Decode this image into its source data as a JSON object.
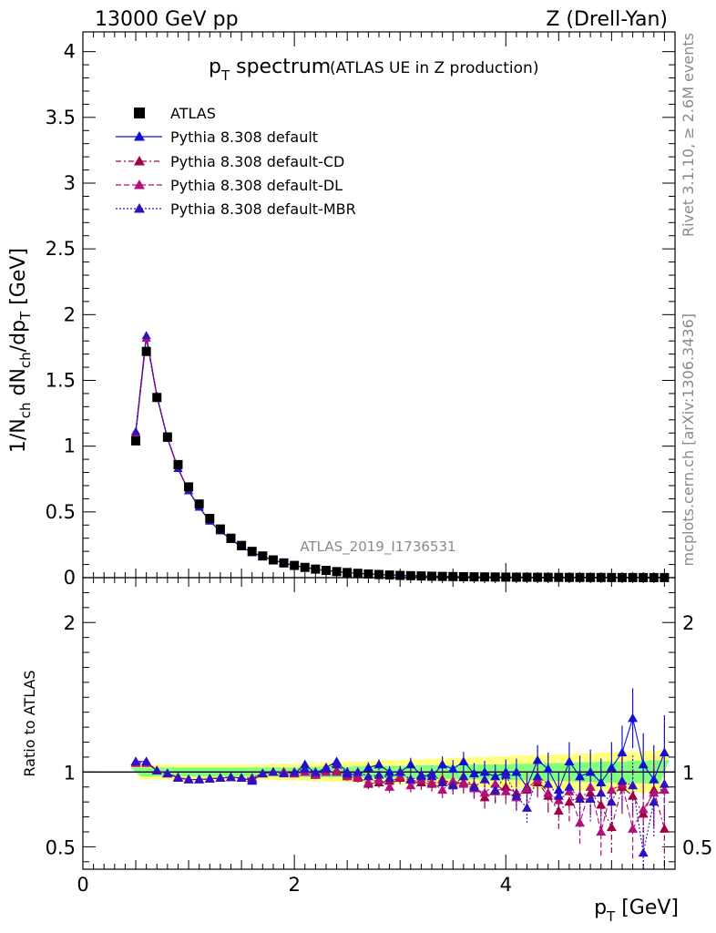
{
  "header": {
    "left": "13000 GeV pp",
    "right": "Z (Drell-Yan)"
  },
  "side_labels": {
    "rivet": "Rivet 3.1.10, ≥ 2.6M events",
    "mcplots": "mcplots.cern.ch [arXiv:1306.3436]"
  },
  "colors": {
    "data": "#000000",
    "default": "#1010d0",
    "cd": "#a00044",
    "dl": "#b0107a",
    "mbr": "#3010c0",
    "band_yellow": "#ffff80",
    "band_green": "#80ff80"
  },
  "chart_data": [
    {
      "type": "line",
      "title": "p_T spectrum",
      "title_main": "p",
      "title_sub": "T",
      "title_rest": " spectrum",
      "subtitle": "(ATLAS UE in Z production)",
      "analysis_label": "ATLAS_2019_I1736531",
      "xlabel": "p_T [GeV]",
      "ylabel": "1/N_ch dN_ch/dp_T [GeV]",
      "xlim": [
        0,
        5.6
      ],
      "ylim": [
        0,
        4.15
      ],
      "y_ticks": [
        "0",
        "0.5",
        "1",
        "1.5",
        "2",
        "2.5",
        "3",
        "3.5",
        "4"
      ],
      "legend": [
        "ATLAS",
        "Pythia 8.308 default",
        "Pythia 8.308 default-CD",
        "Pythia 8.308 default-DL",
        "Pythia 8.308 default-MBR"
      ],
      "x": [
        0.5,
        0.6,
        0.7,
        0.8,
        0.9,
        1.0,
        1.1,
        1.2,
        1.3,
        1.4,
        1.5,
        1.6,
        1.7,
        1.8,
        1.9,
        2.0,
        2.1,
        2.2,
        2.3,
        2.4,
        2.5,
        2.6,
        2.7,
        2.8,
        2.9,
        3.0,
        3.1,
        3.2,
        3.3,
        3.4,
        3.5,
        3.6,
        3.7,
        3.8,
        3.9,
        4.0,
        4.1,
        4.2,
        4.3,
        4.4,
        4.5,
        4.6,
        4.7,
        4.8,
        4.9,
        5.0,
        5.1,
        5.2,
        5.3,
        5.4,
        5.5
      ],
      "series": [
        {
          "name": "ATLAS",
          "values": [
            1.04,
            1.72,
            1.37,
            1.07,
            0.86,
            0.69,
            0.56,
            0.45,
            0.37,
            0.3,
            0.245,
            0.2,
            0.165,
            0.135,
            0.112,
            0.093,
            0.078,
            0.065,
            0.055,
            0.046,
            0.039,
            0.033,
            0.028,
            0.024,
            0.02,
            0.017,
            0.015,
            0.013,
            0.011,
            0.0095,
            0.0082,
            0.0071,
            0.0062,
            0.0054,
            0.0047,
            0.0041,
            0.0036,
            0.0031,
            0.0027,
            0.0024,
            0.0021,
            0.0018,
            0.0016,
            0.0014,
            0.0012,
            0.0011,
            0.00095,
            0.00083,
            0.00073,
            0.00064,
            0.00056
          ]
        },
        {
          "name": "Pythia 8.308 default",
          "values": [
            1.11,
            1.84,
            1.38,
            1.06,
            0.83,
            0.66,
            0.535,
            0.43,
            0.355,
            0.29,
            0.235,
            0.19,
            0.163,
            0.134,
            0.111,
            0.092,
            0.078,
            0.064,
            0.054,
            0.047,
            0.039,
            0.033,
            0.028,
            0.024,
            0.02,
            0.017,
            0.015,
            0.013,
            0.011,
            0.0093,
            0.0081,
            0.007,
            0.0061,
            0.0053,
            0.0046,
            0.004,
            0.0035,
            0.003,
            0.0026,
            0.0023,
            0.002,
            0.0017,
            0.0015,
            0.0013,
            0.0011,
            0.001,
            0.0009,
            0.0008,
            0.0007,
            0.0006,
            0.0005
          ]
        },
        {
          "name": "Pythia 8.308 default-CD",
          "values": [
            1.1,
            1.82,
            1.38,
            1.06,
            0.83,
            0.66,
            0.535,
            0.43,
            0.355,
            0.29,
            0.235,
            0.19,
            0.163,
            0.134,
            0.111,
            0.092,
            0.077,
            0.064,
            0.054,
            0.046,
            0.039,
            0.033,
            0.027,
            0.023,
            0.019,
            0.016,
            0.014,
            0.012,
            0.01,
            0.0088,
            0.0076,
            0.0066,
            0.0057,
            0.0049,
            0.0043,
            0.0037,
            0.0032,
            0.0028,
            0.0024,
            0.0021,
            0.0018,
            0.0016,
            0.0014,
            0.0012,
            0.001,
            0.0009,
            0.0008,
            0.0007,
            0.0006,
            0.0005,
            0.0004
          ]
        },
        {
          "name": "Pythia 8.308 default-DL",
          "values": [
            1.1,
            1.82,
            1.38,
            1.06,
            0.83,
            0.66,
            0.535,
            0.43,
            0.355,
            0.29,
            0.235,
            0.19,
            0.163,
            0.134,
            0.111,
            0.092,
            0.077,
            0.064,
            0.054,
            0.046,
            0.039,
            0.033,
            0.027,
            0.023,
            0.019,
            0.016,
            0.014,
            0.012,
            0.01,
            0.0088,
            0.0076,
            0.0066,
            0.0057,
            0.0049,
            0.0043,
            0.0037,
            0.0032,
            0.0028,
            0.0024,
            0.0021,
            0.0018,
            0.0016,
            0.0014,
            0.0012,
            0.001,
            0.0009,
            0.0008,
            0.0007,
            0.0006,
            0.0005,
            0.0004
          ]
        },
        {
          "name": "Pythia 8.308 default-MBR",
          "values": [
            1.11,
            1.84,
            1.38,
            1.06,
            0.83,
            0.66,
            0.535,
            0.43,
            0.355,
            0.29,
            0.235,
            0.19,
            0.163,
            0.134,
            0.111,
            0.092,
            0.078,
            0.064,
            0.054,
            0.047,
            0.039,
            0.033,
            0.028,
            0.024,
            0.02,
            0.017,
            0.015,
            0.013,
            0.011,
            0.0093,
            0.0081,
            0.007,
            0.0061,
            0.0053,
            0.0046,
            0.004,
            0.0035,
            0.003,
            0.0026,
            0.0023,
            0.002,
            0.0017,
            0.0015,
            0.0013,
            0.0011,
            0.001,
            0.0009,
            0.0008,
            0.0007,
            0.0006,
            0.0005
          ]
        }
      ]
    },
    {
      "type": "scatter",
      "title": "Ratio to ATLAS",
      "ylabel": "Ratio to ATLAS",
      "xlabel": "p_T [GeV]",
      "xlim": [
        0,
        5.6
      ],
      "ylim": [
        0.35,
        2.3
      ],
      "x_ticks": [
        "0",
        "2",
        "4"
      ],
      "y_ticks_left": [
        "0.5",
        "1",
        "2"
      ],
      "y_ticks_right": [
        "0.5",
        "1",
        "2"
      ],
      "x": [
        0.5,
        0.6,
        0.7,
        0.8,
        0.9,
        1.0,
        1.1,
        1.2,
        1.3,
        1.4,
        1.5,
        1.6,
        1.7,
        1.8,
        1.9,
        2.0,
        2.1,
        2.2,
        2.3,
        2.4,
        2.5,
        2.6,
        2.7,
        2.8,
        2.9,
        3.0,
        3.1,
        3.2,
        3.3,
        3.4,
        3.5,
        3.6,
        3.7,
        3.8,
        3.9,
        4.0,
        4.1,
        4.2,
        4.3,
        4.4,
        4.5,
        4.6,
        4.7,
        4.8,
        4.9,
        5.0,
        5.1,
        5.2,
        5.3,
        5.4,
        5.5
      ],
      "band_green": [
        0.03,
        0.03,
        0.03,
        0.03,
        0.03,
        0.03,
        0.03,
        0.03,
        0.03,
        0.03,
        0.03,
        0.03,
        0.03,
        0.03,
        0.03,
        0.03,
        0.035,
        0.035,
        0.035,
        0.035,
        0.035,
        0.04,
        0.04,
        0.04,
        0.04,
        0.04,
        0.04,
        0.045,
        0.045,
        0.045,
        0.045,
        0.05,
        0.05,
        0.05,
        0.05,
        0.05,
        0.055,
        0.055,
        0.055,
        0.06,
        0.06,
        0.06,
        0.065,
        0.065,
        0.07,
        0.07,
        0.07,
        0.075,
        0.075,
        0.08,
        0.08
      ],
      "band_yellow": [
        0.05,
        0.05,
        0.05,
        0.05,
        0.05,
        0.05,
        0.05,
        0.05,
        0.05,
        0.05,
        0.05,
        0.05,
        0.05,
        0.055,
        0.055,
        0.055,
        0.06,
        0.06,
        0.065,
        0.065,
        0.07,
        0.07,
        0.075,
        0.075,
        0.08,
        0.08,
        0.085,
        0.085,
        0.09,
        0.09,
        0.095,
        0.095,
        0.1,
        0.1,
        0.105,
        0.105,
        0.11,
        0.11,
        0.115,
        0.115,
        0.12,
        0.12,
        0.125,
        0.125,
        0.13,
        0.13,
        0.135,
        0.135,
        0.14,
        0.14,
        0.145
      ],
      "series": [
        {
          "name": "Pythia 8.308 default",
          "values": [
            1.07,
            1.07,
            1.01,
            0.99,
            0.96,
            0.95,
            0.95,
            0.955,
            0.96,
            0.965,
            0.96,
            0.94,
            0.99,
            1.0,
            1.0,
            0.99,
            1.05,
            0.99,
            1.03,
            1.07,
            1.0,
            0.97,
            1.03,
            1.05,
            1.0,
            1.0,
            1.05,
            0.98,
            0.97,
            1.05,
            1.02,
            1.07,
            0.99,
            1.0,
            0.97,
            1.0,
            1.0,
            0.9,
            1.08,
            1.02,
            0.88,
            1.07,
            0.97,
            1.0,
            0.93,
            1.03,
            1.13,
            1.36,
            1.05,
            0.95,
            1.13
          ],
          "errors": [
            0.01,
            0.01,
            0.01,
            0.01,
            0.01,
            0.01,
            0.01,
            0.01,
            0.01,
            0.01,
            0.01,
            0.015,
            0.015,
            0.015,
            0.015,
            0.02,
            0.02,
            0.02,
            0.025,
            0.025,
            0.03,
            0.03,
            0.035,
            0.035,
            0.04,
            0.04,
            0.045,
            0.05,
            0.05,
            0.055,
            0.06,
            0.065,
            0.07,
            0.075,
            0.08,
            0.085,
            0.09,
            0.1,
            0.1,
            0.11,
            0.12,
            0.13,
            0.14,
            0.15,
            0.16,
            0.17,
            0.18,
            0.2,
            0.21,
            0.23,
            0.25
          ]
        },
        {
          "name": "Pythia 8.308 default-CD",
          "values": [
            1.06,
            1.06,
            1.01,
            0.99,
            0.965,
            0.95,
            0.95,
            0.955,
            0.96,
            0.965,
            0.96,
            0.96,
            0.99,
            1.0,
            1.0,
            0.99,
            1.0,
            0.98,
            1.0,
            1.01,
            0.98,
            0.97,
            0.92,
            0.93,
            0.94,
            0.96,
            0.95,
            0.93,
            0.92,
            0.95,
            0.92,
            0.93,
            0.91,
            0.83,
            0.87,
            0.9,
            0.86,
            0.88,
            0.93,
            0.84,
            0.74,
            0.8,
            0.84,
            0.86,
            0.78,
            0.63,
            0.9,
            0.84,
            0.72,
            0.88,
            0.62
          ],
          "errors": [
            0.01,
            0.01,
            0.01,
            0.01,
            0.01,
            0.01,
            0.01,
            0.01,
            0.01,
            0.01,
            0.01,
            0.015,
            0.015,
            0.015,
            0.015,
            0.02,
            0.02,
            0.02,
            0.025,
            0.025,
            0.03,
            0.03,
            0.035,
            0.035,
            0.04,
            0.04,
            0.045,
            0.05,
            0.05,
            0.055,
            0.06,
            0.065,
            0.07,
            0.075,
            0.08,
            0.085,
            0.09,
            0.1,
            0.1,
            0.11,
            0.12,
            0.13,
            0.14,
            0.15,
            0.16,
            0.17,
            0.18,
            0.2,
            0.21,
            0.23,
            0.25
          ]
        },
        {
          "name": "Pythia 8.308 default-DL",
          "values": [
            1.06,
            1.06,
            1.01,
            0.99,
            0.965,
            0.95,
            0.95,
            0.955,
            0.96,
            0.965,
            0.96,
            0.96,
            0.99,
            1.0,
            1.0,
            0.99,
            1.0,
            0.98,
            1.0,
            1.0,
            0.97,
            0.96,
            0.93,
            0.95,
            0.9,
            0.97,
            0.91,
            0.95,
            0.93,
            0.88,
            0.94,
            0.92,
            0.89,
            0.86,
            0.92,
            0.87,
            0.83,
            0.89,
            0.95,
            0.86,
            0.81,
            0.87,
            0.66,
            0.9,
            0.6,
            0.88,
            0.92,
            0.62,
            0.75,
            0.86,
            0.88
          ],
          "errors": [
            0.01,
            0.01,
            0.01,
            0.01,
            0.01,
            0.01,
            0.01,
            0.01,
            0.01,
            0.01,
            0.01,
            0.015,
            0.015,
            0.015,
            0.015,
            0.02,
            0.02,
            0.02,
            0.025,
            0.025,
            0.03,
            0.03,
            0.035,
            0.035,
            0.04,
            0.04,
            0.045,
            0.05,
            0.05,
            0.055,
            0.06,
            0.065,
            0.07,
            0.075,
            0.08,
            0.085,
            0.09,
            0.1,
            0.1,
            0.11,
            0.12,
            0.13,
            0.14,
            0.15,
            0.16,
            0.17,
            0.18,
            0.2,
            0.21,
            0.23,
            0.25
          ]
        },
        {
          "name": "Pythia 8.308 default-MBR",
          "values": [
            1.07,
            1.07,
            1.01,
            0.99,
            0.96,
            0.95,
            0.95,
            0.955,
            0.96,
            0.965,
            0.96,
            0.95,
            0.99,
            1.0,
            0.99,
            1.0,
            1.02,
            1.0,
            1.02,
            1.05,
            0.99,
            1.0,
            0.97,
            0.98,
            0.96,
            1.0,
            0.95,
            0.97,
            0.99,
            0.93,
            0.91,
            0.97,
            0.9,
            0.95,
            0.88,
            0.98,
            0.84,
            0.76,
            0.97,
            0.92,
            0.84,
            0.9,
            0.82,
            0.82,
            0.86,
            0.8,
            0.94,
            0.91,
            0.46,
            0.8,
            0.92
          ],
          "errors": [
            0.01,
            0.01,
            0.01,
            0.01,
            0.01,
            0.01,
            0.01,
            0.01,
            0.01,
            0.01,
            0.01,
            0.015,
            0.015,
            0.015,
            0.015,
            0.02,
            0.02,
            0.02,
            0.025,
            0.025,
            0.03,
            0.03,
            0.035,
            0.035,
            0.04,
            0.04,
            0.045,
            0.05,
            0.05,
            0.055,
            0.06,
            0.065,
            0.07,
            0.075,
            0.08,
            0.085,
            0.09,
            0.1,
            0.1,
            0.11,
            0.12,
            0.13,
            0.14,
            0.15,
            0.16,
            0.17,
            0.18,
            0.2,
            0.21,
            0.23,
            0.25
          ]
        }
      ]
    }
  ]
}
